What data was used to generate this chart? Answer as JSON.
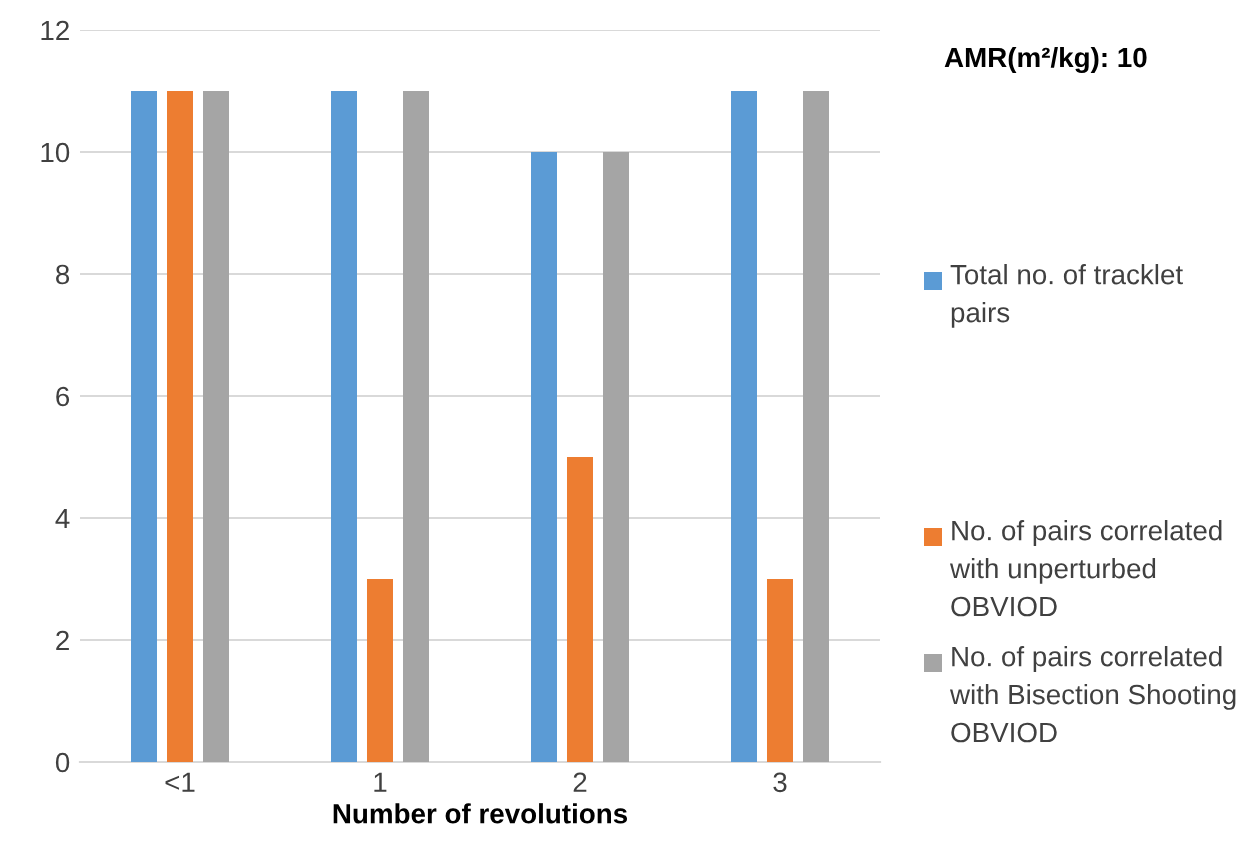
{
  "chart_data": {
    "type": "bar",
    "title": "AMR(m²/kg): 10",
    "xlabel": "Number of revolutions",
    "categories": [
      "<1",
      "1",
      "2",
      "3"
    ],
    "series": [
      {
        "name": "Total no. of tracklet pairs",
        "color": "#5b9bd5",
        "values": [
          11,
          11,
          10,
          11
        ]
      },
      {
        "name": "No. of pairs correlated with unperturbed OBVIOD",
        "color": "#ed7d31",
        "values": [
          11,
          3,
          5,
          3
        ]
      },
      {
        "name": "No. of pairs correlated with Bisection Shooting OBVIOD",
        "color": "#a5a5a5",
        "values": [
          11,
          11,
          10,
          11
        ]
      }
    ],
    "ylim": [
      0,
      12
    ],
    "yticks": [
      0,
      2,
      4,
      6,
      8,
      10,
      12
    ],
    "grid": "y",
    "legend": "right"
  }
}
